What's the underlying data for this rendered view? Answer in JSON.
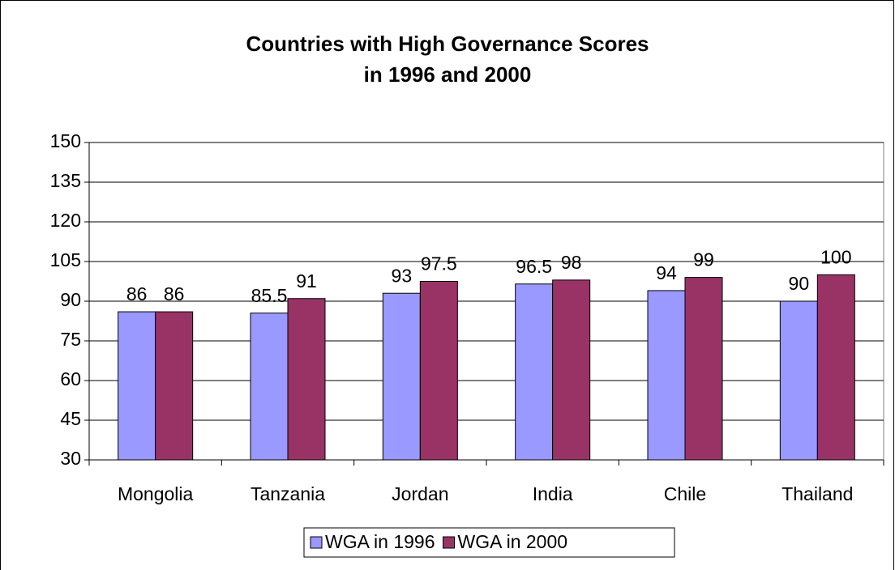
{
  "chart_data": {
    "type": "bar",
    "title": [
      "Countries with High Governance Scores",
      "in 1996 and 2000"
    ],
    "categories": [
      "Mongolia",
      "Tanzania",
      "Jordan",
      "India",
      "Chile",
      "Thailand"
    ],
    "series": [
      {
        "name": "WGA in 1996",
        "color": "#9999ff",
        "values": [
          86,
          85.5,
          93,
          96.5,
          94,
          90
        ]
      },
      {
        "name": "WGA in 2000",
        "color": "#993366",
        "values": [
          86,
          91,
          97.5,
          98,
          99,
          100
        ]
      }
    ],
    "ylim": [
      30,
      150
    ],
    "yticks": [
      30,
      45,
      60,
      75,
      90,
      105,
      120,
      135,
      150
    ],
    "grid": true,
    "legend": "bottom"
  }
}
